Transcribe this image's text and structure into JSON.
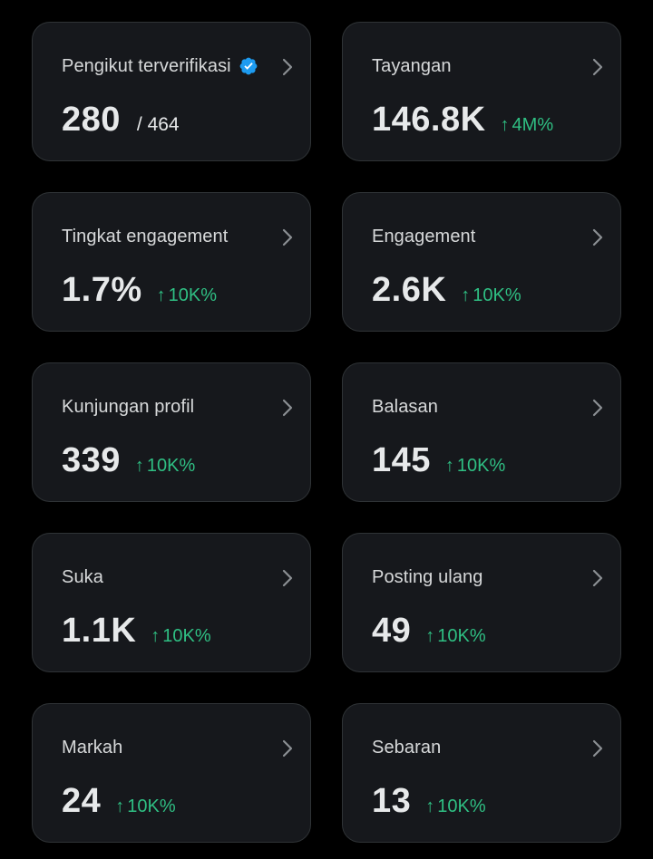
{
  "colors": {
    "background": "#000000",
    "card": "#16181c",
    "border": "#2f3336",
    "text": "#e7e9ea",
    "positive": "#2fbf83",
    "verified": "#1d9bf0"
  },
  "cards": [
    {
      "label": "Pengikut terverifikasi",
      "value": "280",
      "total": "/ 464",
      "icon": "verified-badge-icon"
    },
    {
      "label": "Tayangan",
      "value": "146.8K",
      "arrow": "↑",
      "delta": "4M%"
    },
    {
      "label": "Tingkat engagement",
      "value": "1.7%",
      "arrow": "↑",
      "delta": "10K%"
    },
    {
      "label": "Engagement",
      "value": "2.6K",
      "arrow": "↑",
      "delta": "10K%"
    },
    {
      "label": "Kunjungan profil",
      "value": "339",
      "arrow": "↑",
      "delta": "10K%"
    },
    {
      "label": "Balasan",
      "value": "145",
      "arrow": "↑",
      "delta": "10K%"
    },
    {
      "label": "Suka",
      "value": "1.1K",
      "arrow": "↑",
      "delta": "10K%"
    },
    {
      "label": "Posting ulang",
      "value": "49",
      "arrow": "↑",
      "delta": "10K%"
    },
    {
      "label": "Markah",
      "value": "24",
      "arrow": "↑",
      "delta": "10K%"
    },
    {
      "label": "Sebaran",
      "value": "13",
      "arrow": "↑",
      "delta": "10K%"
    }
  ]
}
